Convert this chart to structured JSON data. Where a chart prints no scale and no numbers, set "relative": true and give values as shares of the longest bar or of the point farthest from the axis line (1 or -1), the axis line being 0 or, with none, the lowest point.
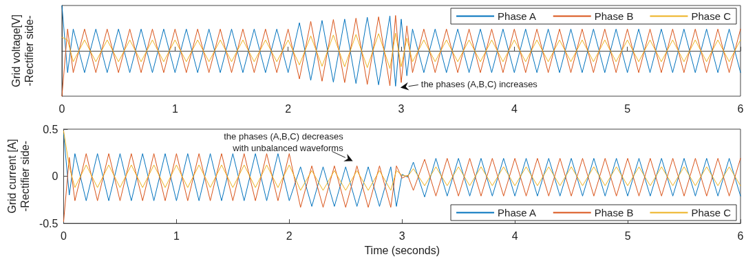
{
  "chart_data": [
    {
      "type": "line",
      "relative": true,
      "ylabel": "Grid voltage[V]\n-Rectifier side-",
      "xlim": [
        0,
        6
      ],
      "xticks": [
        0,
        1,
        2,
        3,
        4,
        5,
        6
      ],
      "legend": "top right",
      "grid": false,
      "x": [
        0,
        0.05,
        0.1,
        0.2,
        0.3,
        0.4,
        0.5,
        0.6,
        0.7,
        0.8,
        0.9,
        1.0,
        1.1,
        1.2,
        1.3,
        1.4,
        1.5,
        1.6,
        1.7,
        1.8,
        1.9,
        2.0,
        2.1,
        2.2,
        2.3,
        2.4,
        2.5,
        2.6,
        2.7,
        2.8,
        2.9,
        2.95,
        3.0,
        3.05,
        3.1,
        3.2,
        3.3,
        3.4,
        3.5,
        3.6,
        3.7,
        3.8,
        3.9,
        4.0,
        4.1,
        4.2,
        4.3,
        4.4,
        4.5,
        4.6,
        4.7,
        4.8,
        4.9,
        5.0,
        5.1,
        5.2,
        5.3,
        5.4,
        5.5,
        5.6,
        5.7,
        5.8,
        5.9,
        6.0
      ],
      "series": [
        {
          "name": "Phase A",
          "color": "#0072bd",
          "values": [
            1,
            -0.48,
            0.48,
            -0.48,
            0.48,
            -0.48,
            0.48,
            -0.48,
            0.48,
            -0.48,
            0.48,
            -0.48,
            0.48,
            -0.48,
            0.48,
            -0.48,
            0.48,
            -0.48,
            0.48,
            -0.48,
            0.48,
            -0.48,
            0.62,
            -0.65,
            0.67,
            -0.69,
            0.7,
            -0.72,
            0.74,
            -0.75,
            0.77,
            -0.78,
            0.7,
            -0.55,
            0.48,
            -0.48,
            0.48,
            -0.48,
            0.48,
            -0.48,
            0.48,
            -0.48,
            0.48,
            -0.48,
            0.48,
            -0.48,
            0.48,
            -0.48,
            0.48,
            -0.48,
            0.48,
            -0.48,
            0.48,
            -0.48,
            0.48,
            -0.48,
            0.48,
            -0.48,
            0.48,
            -0.48,
            0.48,
            -0.48,
            0.48,
            -0.48
          ]
        },
        {
          "name": "Phase B",
          "color": "#d95319",
          "values": [
            -1,
            0.48,
            -0.48,
            0.48,
            -0.48,
            0.48,
            -0.48,
            0.48,
            -0.48,
            0.48,
            -0.48,
            0.48,
            -0.48,
            0.48,
            -0.48,
            0.48,
            -0.48,
            0.48,
            -0.48,
            0.48,
            -0.48,
            0.48,
            -0.62,
            0.65,
            -0.67,
            0.69,
            -0.7,
            0.72,
            -0.74,
            0.75,
            -0.77,
            0.78,
            -0.7,
            0.55,
            -0.48,
            0.48,
            -0.48,
            0.48,
            -0.48,
            0.48,
            -0.48,
            0.48,
            -0.48,
            0.48,
            -0.48,
            0.48,
            -0.48,
            0.48,
            -0.48,
            0.48,
            -0.48,
            0.48,
            -0.48,
            0.48,
            -0.48,
            0.48,
            -0.48,
            0.48,
            -0.48,
            0.48,
            -0.48,
            0.48,
            -0.48,
            0.48
          ]
        },
        {
          "name": "Phase C",
          "color": "#edb120",
          "values": [
            0.3,
            0.24,
            -0.24,
            0.24,
            -0.24,
            0.24,
            -0.24,
            0.24,
            -0.24,
            0.24,
            -0.24,
            0.24,
            -0.24,
            0.24,
            -0.24,
            0.24,
            -0.24,
            0.24,
            -0.24,
            0.24,
            -0.24,
            0.24,
            -0.31,
            0.33,
            -0.34,
            0.35,
            -0.35,
            0.36,
            -0.37,
            0.38,
            -0.39,
            0.39,
            -0.35,
            0.28,
            -0.24,
            0.24,
            -0.24,
            0.24,
            -0.24,
            0.24,
            -0.24,
            0.24,
            -0.24,
            0.24,
            -0.24,
            0.24,
            -0.24,
            0.24,
            -0.24,
            0.24,
            -0.24,
            0.24,
            -0.24,
            0.24,
            -0.24,
            0.24,
            -0.24,
            0.24,
            -0.24,
            0.24,
            -0.24,
            0.24,
            -0.24,
            0.24
          ]
        }
      ],
      "annotations": [
        {
          "text": "the phases (A,B,C) increases",
          "x": 2.95,
          "y": -0.78
        }
      ]
    },
    {
      "type": "line",
      "ylabel": "Grid current [A]\n-Rectifier side-",
      "xlabel": "Time (seconds)",
      "xlim": [
        0,
        6
      ],
      "xticks": [
        0,
        1,
        2,
        3,
        4,
        5,
        6
      ],
      "ylim": [
        -0.5,
        0.5
      ],
      "yticks": [
        -0.5,
        0,
        0.5
      ],
      "legend": "bottom right",
      "grid": false,
      "x": [
        0,
        0.05,
        0.1,
        0.2,
        0.3,
        0.4,
        0.5,
        0.6,
        0.7,
        0.8,
        0.9,
        1.0,
        1.1,
        1.2,
        1.3,
        1.4,
        1.5,
        1.6,
        1.7,
        1.8,
        1.9,
        2.0,
        2.1,
        2.2,
        2.3,
        2.4,
        2.5,
        2.6,
        2.7,
        2.8,
        2.9,
        2.95,
        3.0,
        3.05,
        3.1,
        3.2,
        3.3,
        3.4,
        3.5,
        3.6,
        3.7,
        3.8,
        3.9,
        4.0,
        4.1,
        4.2,
        4.3,
        4.4,
        4.5,
        4.6,
        4.7,
        4.8,
        4.9,
        5.0,
        5.1,
        5.2,
        5.3,
        5.4,
        5.5,
        5.6,
        5.7,
        5.8,
        5.9,
        6.0
      ],
      "series": [
        {
          "name": "Phase A",
          "color": "#0072bd",
          "values": [
            0.45,
            -0.2,
            0.24,
            -0.26,
            0.24,
            -0.26,
            0.24,
            -0.26,
            0.24,
            -0.26,
            0.24,
            -0.26,
            0.24,
            -0.26,
            0.24,
            -0.26,
            0.24,
            -0.26,
            0.24,
            -0.26,
            0.24,
            -0.26,
            0.1,
            -0.32,
            0.1,
            -0.32,
            0.1,
            -0.32,
            0.1,
            -0.32,
            0.1,
            -0.32,
            0.02,
            -0.01,
            0.15,
            -0.22,
            0.19,
            -0.21,
            0.19,
            -0.21,
            0.19,
            -0.21,
            0.19,
            -0.21,
            0.19,
            -0.21,
            0.19,
            -0.21,
            0.19,
            -0.21,
            0.19,
            -0.21,
            0.19,
            -0.21,
            0.19,
            -0.21,
            0.19,
            -0.21,
            0.19,
            -0.21,
            0.19,
            -0.21,
            0.19,
            -0.21
          ]
        },
        {
          "name": "Phase B",
          "color": "#d95319",
          "values": [
            -0.48,
            0.2,
            -0.26,
            0.24,
            -0.26,
            0.24,
            -0.26,
            0.24,
            -0.26,
            0.24,
            -0.26,
            0.24,
            -0.26,
            0.24,
            -0.26,
            0.24,
            -0.26,
            0.24,
            -0.26,
            0.24,
            -0.26,
            0.24,
            -0.33,
            0.11,
            -0.33,
            0.11,
            -0.33,
            0.11,
            -0.33,
            0.11,
            -0.33,
            0.11,
            -0.02,
            0.01,
            -0.15,
            0.18,
            -0.21,
            0.19,
            -0.21,
            0.19,
            -0.21,
            0.19,
            -0.21,
            0.19,
            -0.21,
            0.19,
            -0.21,
            0.19,
            -0.21,
            0.19,
            -0.21,
            0.19,
            -0.21,
            0.19,
            -0.21,
            0.19,
            -0.21,
            0.19,
            -0.21,
            0.19,
            -0.21,
            0.19,
            -0.21,
            0.19
          ]
        },
        {
          "name": "Phase C",
          "color": "#edb120",
          "values": [
            0.48,
            0.1,
            -0.12,
            0.12,
            -0.12,
            0.12,
            -0.12,
            0.12,
            -0.12,
            0.12,
            -0.12,
            0.12,
            -0.12,
            0.12,
            -0.12,
            0.12,
            -0.12,
            0.12,
            -0.12,
            0.12,
            -0.12,
            0.12,
            -0.15,
            0.06,
            -0.15,
            0.06,
            -0.15,
            0.06,
            -0.15,
            0.06,
            -0.15,
            0.06,
            0.01,
            0,
            0.08,
            -0.1,
            0.1,
            -0.1,
            0.1,
            -0.1,
            0.1,
            -0.1,
            0.1,
            -0.1,
            0.1,
            -0.1,
            0.1,
            -0.1,
            0.1,
            -0.1,
            0.1,
            -0.1,
            0.1,
            -0.1,
            0.1,
            -0.1,
            0.1,
            -0.1,
            0.1,
            -0.1,
            0.1,
            -0.1,
            0.1,
            -0.1
          ]
        }
      ],
      "annotations": [
        {
          "text": "the phases (A,B,C) decreases\nwith unbalanced waveforms",
          "x": 2.6,
          "y": 0.11
        }
      ]
    }
  ]
}
